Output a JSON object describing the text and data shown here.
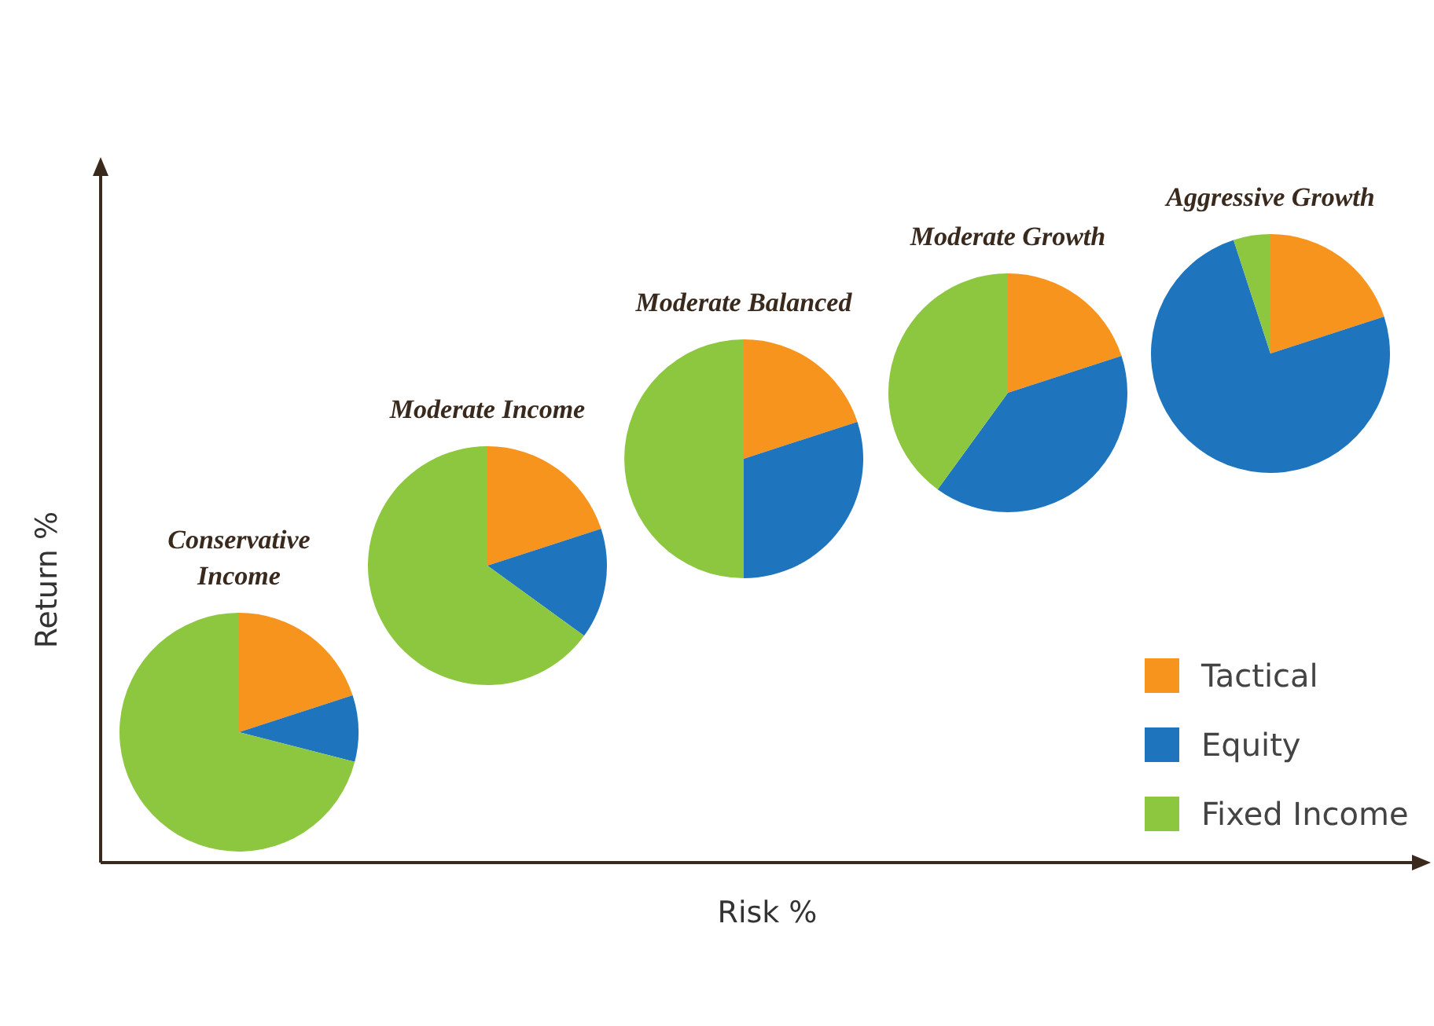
{
  "chart_data": {
    "type": "pie",
    "xlabel": "Risk %",
    "ylabel": "Return %",
    "categories": [
      "Tactical",
      "Equity",
      "Fixed Income"
    ],
    "colors": [
      "#f7941d",
      "#1f75bd",
      "#8dc63f"
    ],
    "legend": "bottom right",
    "series": [
      {
        "name": "Conservative Income",
        "values": [
          20,
          9,
          71
        ]
      },
      {
        "name": "Moderate Income",
        "values": [
          20,
          15,
          65
        ]
      },
      {
        "name": "Moderate Balanced",
        "values": [
          20,
          30,
          50
        ]
      },
      {
        "name": "Moderate Growth",
        "values": [
          20,
          40,
          40
        ]
      },
      {
        "name": "Aggressive Growth",
        "values": [
          20,
          75,
          5
        ]
      }
    ]
  }
}
